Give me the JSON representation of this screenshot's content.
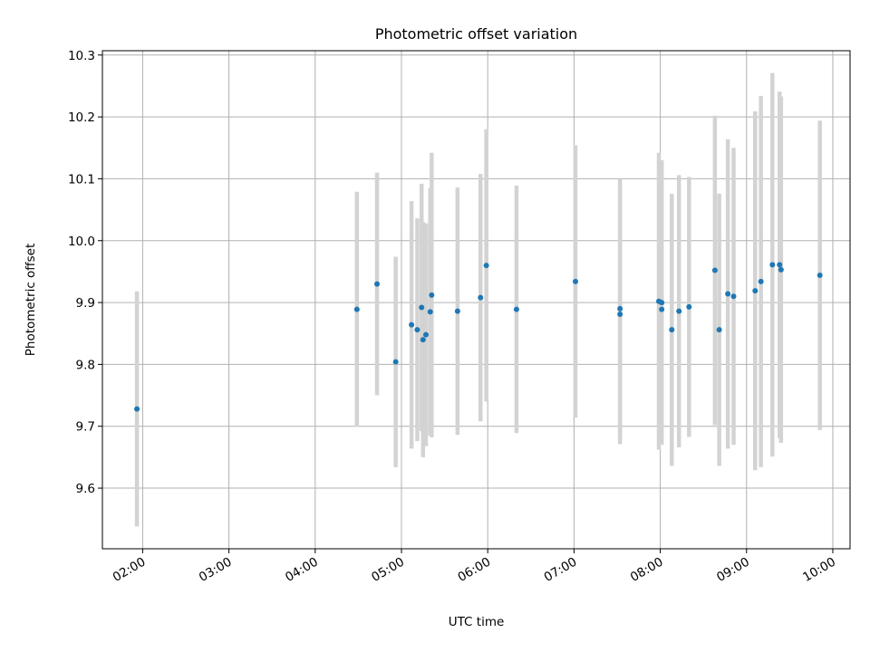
{
  "chart_data": {
    "type": "scatter",
    "title": "Photometric offset variation",
    "xlabel": "UTC time",
    "ylabel": "Photometric offset",
    "grid": true,
    "x_is_time": true,
    "xlim": [
      "01:32",
      "10:12"
    ],
    "ylim": [
      9.502,
      10.307
    ],
    "yticks": [
      9.6,
      9.7,
      9.8,
      9.9,
      10.0,
      10.1,
      10.2,
      10.3
    ],
    "ytick_labels": [
      "9.6",
      "9.7",
      "9.8",
      "9.9",
      "10.0",
      "10.1",
      "10.2",
      "10.3"
    ],
    "xticks": [
      "02:00",
      "03:00",
      "04:00",
      "05:00",
      "06:00",
      "07:00",
      "08:00",
      "09:00",
      "10:00"
    ],
    "point_color": "#1f77b4",
    "errorbar_color": "#d3d3d3",
    "series": [
      {
        "points": [
          {
            "x": "01:56",
            "y": 9.728,
            "err": 0.19
          },
          {
            "x": "04:29",
            "y": 9.889,
            "err": 0.19
          },
          {
            "x": "04:43",
            "y": 9.93,
            "err": 0.18
          },
          {
            "x": "04:56",
            "y": 9.804,
            "err": 0.17
          },
          {
            "x": "05:07",
            "y": 9.864,
            "err": 0.2
          },
          {
            "x": "05:11",
            "y": 9.856,
            "err": 0.18
          },
          {
            "x": "05:14",
            "y": 9.892,
            "err": 0.2
          },
          {
            "x": "05:15",
            "y": 9.84,
            "err": 0.19
          },
          {
            "x": "05:17",
            "y": 9.848,
            "err": 0.18
          },
          {
            "x": "05:20",
            "y": 9.885,
            "err": 0.2
          },
          {
            "x": "05:21",
            "y": 9.912,
            "err": 0.23
          },
          {
            "x": "05:39",
            "y": 9.886,
            "err": 0.2
          },
          {
            "x": "05:55",
            "y": 9.908,
            "err": 0.2
          },
          {
            "x": "05:59",
            "y": 9.96,
            "err": 0.22
          },
          {
            "x": "06:20",
            "y": 9.889,
            "err": 0.2
          },
          {
            "x": "07:01",
            "y": 9.934,
            "err": 0.22
          },
          {
            "x": "07:32",
            "y": 9.89,
            "err": 0.21
          },
          {
            "x": "07:32",
            "y": 9.881,
            "err": 0.21
          },
          {
            "x": "07:59",
            "y": 9.902,
            "err": 0.24
          },
          {
            "x": "08:01",
            "y": 9.9,
            "err": 0.23
          },
          {
            "x": "08:01",
            "y": 9.889,
            "err": 0.21
          },
          {
            "x": "08:08",
            "y": 9.856,
            "err": 0.22
          },
          {
            "x": "08:13",
            "y": 9.886,
            "err": 0.22
          },
          {
            "x": "08:20",
            "y": 9.893,
            "err": 0.21
          },
          {
            "x": "08:38",
            "y": 9.952,
            "err": 0.25
          },
          {
            "x": "08:41",
            "y": 9.856,
            "err": 0.22
          },
          {
            "x": "08:47",
            "y": 9.914,
            "err": 0.25
          },
          {
            "x": "08:51",
            "y": 9.91,
            "err": 0.24
          },
          {
            "x": "09:06",
            "y": 9.919,
            "err": 0.29
          },
          {
            "x": "09:10",
            "y": 9.934,
            "err": 0.3
          },
          {
            "x": "09:18",
            "y": 9.961,
            "err": 0.31
          },
          {
            "x": "09:23",
            "y": 9.961,
            "err": 0.28
          },
          {
            "x": "09:24",
            "y": 9.953,
            "err": 0.28
          },
          {
            "x": "09:51",
            "y": 9.944,
            "err": 0.25
          }
        ]
      }
    ]
  }
}
